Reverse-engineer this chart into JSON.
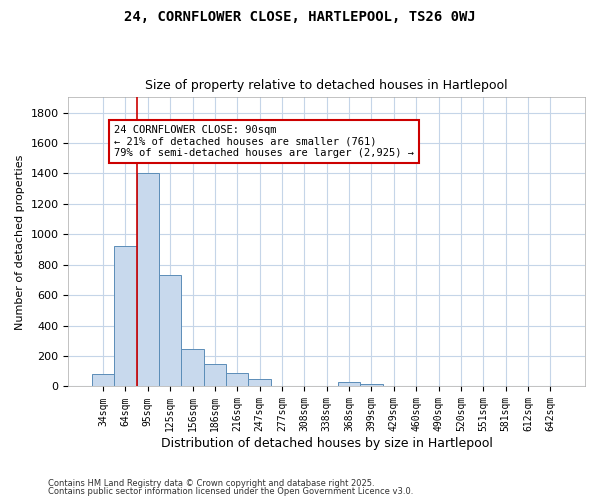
{
  "title1": "24, CORNFLOWER CLOSE, HARTLEPOOL, TS26 0WJ",
  "title2": "Size of property relative to detached houses in Hartlepool",
  "xlabel": "Distribution of detached houses by size in Hartlepool",
  "ylabel": "Number of detached properties",
  "categories": [
    "34sqm",
    "64sqm",
    "95sqm",
    "125sqm",
    "156sqm",
    "186sqm",
    "216sqm",
    "247sqm",
    "277sqm",
    "308sqm",
    "338sqm",
    "368sqm",
    "399sqm",
    "429sqm",
    "460sqm",
    "490sqm",
    "520sqm",
    "551sqm",
    "581sqm",
    "612sqm",
    "642sqm"
  ],
  "values": [
    85,
    920,
    1400,
    730,
    245,
    145,
    88,
    52,
    0,
    0,
    0,
    27,
    14,
    0,
    0,
    0,
    0,
    0,
    0,
    0,
    0
  ],
  "bar_color": "#c8d9ed",
  "bar_edge_color": "#5b8db8",
  "vline_color": "#cc0000",
  "vline_pos": 2,
  "annotation_text": "24 CORNFLOWER CLOSE: 90sqm\n← 21% of detached houses are smaller (761)\n79% of semi-detached houses are larger (2,925) →",
  "annotation_box_color": "#ffffff",
  "annotation_box_edge": "#cc0000",
  "background_color": "#ffffff",
  "grid_color": "#c5d5e8",
  "ylim": [
    0,
    1900
  ],
  "yticks": [
    0,
    200,
    400,
    600,
    800,
    1000,
    1200,
    1400,
    1600,
    1800
  ],
  "footer1": "Contains HM Land Registry data © Crown copyright and database right 2025.",
  "footer2": "Contains public sector information licensed under the Open Government Licence v3.0."
}
